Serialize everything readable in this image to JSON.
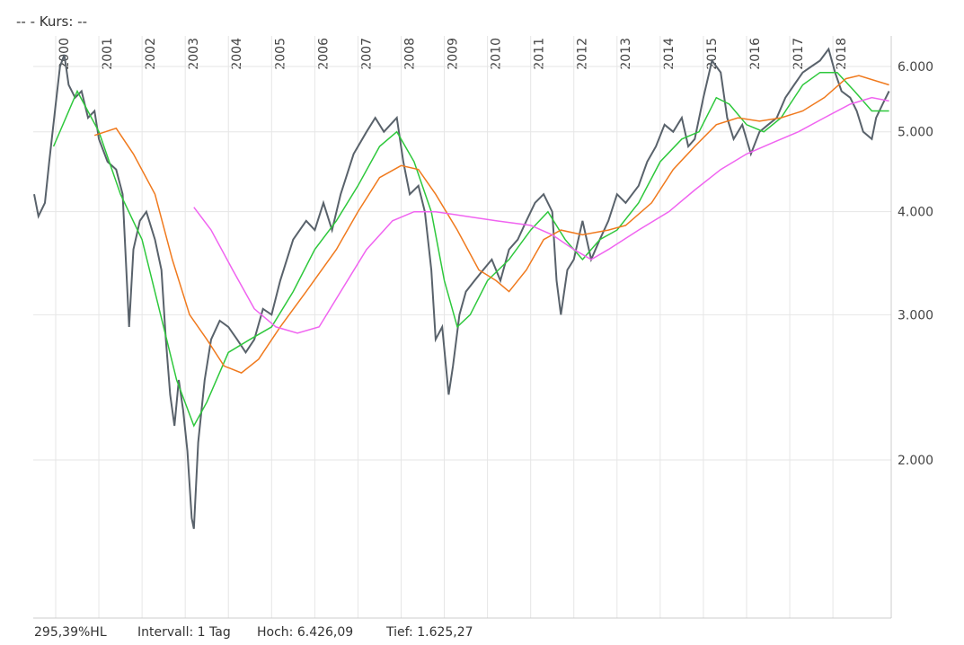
{
  "header": "--  - Kurs: --",
  "footer": [
    "295,39%HL",
    "Intervall: 1 Tag",
    "Hoch:  6.426,09",
    "Tief:  1.625,27"
  ],
  "chart_data": {
    "type": "line",
    "log_y": true,
    "grid": true,
    "xlim": [
      1999.48,
      2019.35
    ],
    "xticks": [
      2000,
      2001,
      2002,
      2003,
      2004,
      2005,
      2006,
      2007,
      2008,
      2009,
      2010,
      2011,
      2012,
      2013,
      2014,
      2015,
      2016,
      2017,
      2018
    ],
    "ylim": [
      1286,
      6535
    ],
    "yticks": [
      {
        "value": 2000,
        "label": "2.000"
      },
      {
        "value": 3000,
        "label": "3.000"
      },
      {
        "value": 4000,
        "label": "4.000"
      },
      {
        "value": 5000,
        "label": "5.000"
      },
      {
        "value": 6000,
        "label": "6.000"
      }
    ],
    "series": [
      {
        "color": "#59626b",
        "x": [
          1999.5,
          1999.6,
          1999.75,
          1999.85,
          2000.0,
          2000.1,
          2000.2,
          2000.3,
          2000.45,
          2000.6,
          2000.75,
          2000.9,
          2001.0,
          2001.2,
          2001.4,
          2001.55,
          2001.7,
          2001.8,
          2001.95,
          2002.1,
          2002.3,
          2002.45,
          2002.55,
          2002.65,
          2002.75,
          2002.85,
          2002.95,
          2003.05,
          2003.15,
          2003.2,
          2003.3,
          2003.45,
          2003.6,
          2003.8,
          2004.0,
          2004.2,
          2004.4,
          2004.6,
          2004.8,
          2005.0,
          2005.2,
          2005.5,
          2005.8,
          2006.0,
          2006.2,
          2006.4,
          2006.6,
          2006.9,
          2007.2,
          2007.4,
          2007.6,
          2007.9,
          2008.05,
          2008.2,
          2008.4,
          2008.55,
          2008.7,
          2008.8,
          2008.95,
          2009.1,
          2009.2,
          2009.35,
          2009.5,
          2009.7,
          2009.9,
          2010.1,
          2010.3,
          2010.5,
          2010.7,
          2010.9,
          2011.1,
          2011.3,
          2011.5,
          2011.6,
          2011.7,
          2011.85,
          2012.0,
          2012.2,
          2012.4,
          2012.6,
          2012.8,
          2013.0,
          2013.2,
          2013.5,
          2013.7,
          2013.9,
          2014.1,
          2014.3,
          2014.5,
          2014.65,
          2014.8,
          2015.0,
          2015.2,
          2015.4,
          2015.55,
          2015.7,
          2015.9,
          2016.1,
          2016.3,
          2016.5,
          2016.7,
          2016.9,
          2017.1,
          2017.3,
          2017.5,
          2017.7,
          2017.9,
          2018.05,
          2018.2,
          2018.4,
          2018.55,
          2018.7,
          2018.9,
          2019.0,
          2019.15,
          2019.3
        ],
        "values": [
          4200,
          3950,
          4100,
          4600,
          5400,
          6000,
          6200,
          5700,
          5500,
          5600,
          5200,
          5300,
          4900,
          4600,
          4500,
          4200,
          2900,
          3600,
          3900,
          4000,
          3700,
          3400,
          2800,
          2400,
          2200,
          2500,
          2300,
          2050,
          1700,
          1650,
          2100,
          2500,
          2800,
          2950,
          2900,
          2800,
          2700,
          2800,
          3050,
          3000,
          3300,
          3700,
          3900,
          3800,
          4100,
          3800,
          4200,
          4700,
          5000,
          5200,
          5000,
          5200,
          4600,
          4200,
          4300,
          4000,
          3400,
          2800,
          2900,
          2400,
          2600,
          3000,
          3200,
          3300,
          3400,
          3500,
          3300,
          3600,
          3700,
          3900,
          4100,
          4200,
          4000,
          3300,
          3000,
          3400,
          3500,
          3900,
          3500,
          3700,
          3900,
          4200,
          4100,
          4300,
          4600,
          4800,
          5100,
          5000,
          5200,
          4800,
          4900,
          5500,
          6100,
          5900,
          5200,
          4900,
          5100,
          4700,
          5000,
          5100,
          5200,
          5500,
          5700,
          5900,
          6000,
          6100,
          6300,
          5900,
          5600,
          5500,
          5300,
          5000,
          4900,
          5200,
          5400,
          5600
        ]
      },
      {
        "color": "#2ec83c",
        "x": [
          1999.95,
          2000.5,
          2001.0,
          2001.5,
          2002.0,
          2002.5,
          2002.8,
          2003.2,
          2003.5,
          2004.0,
          2004.5,
          2005.0,
          2005.5,
          2006.0,
          2006.5,
          2007.0,
          2007.5,
          2007.9,
          2008.3,
          2008.7,
          2009.0,
          2009.3,
          2009.6,
          2010.0,
          2010.5,
          2011.0,
          2011.4,
          2011.8,
          2012.2,
          2012.6,
          2013.0,
          2013.5,
          2014.0,
          2014.5,
          2014.9,
          2015.3,
          2015.6,
          2016.0,
          2016.4,
          2016.8,
          2017.3,
          2017.7,
          2018.1,
          2018.5,
          2018.9,
          2019.3
        ],
        "values": [
          4800,
          5600,
          5000,
          4200,
          3700,
          2900,
          2500,
          2200,
          2350,
          2700,
          2800,
          2900,
          3200,
          3600,
          3900,
          4300,
          4800,
          5000,
          4600,
          4000,
          3300,
          2900,
          3000,
          3300,
          3500,
          3800,
          4000,
          3700,
          3500,
          3700,
          3800,
          4100,
          4600,
          4900,
          5000,
          5500,
          5400,
          5100,
          5000,
          5200,
          5700,
          5900,
          5900,
          5600,
          5300,
          5300
        ]
      },
      {
        "color": "#f07a1e",
        "x": [
          2000.9,
          2001.4,
          2001.8,
          2002.3,
          2002.7,
          2003.1,
          2003.5,
          2003.9,
          2004.3,
          2004.7,
          2005.2,
          2005.8,
          2006.5,
          2007.0,
          2007.5,
          2008.0,
          2008.4,
          2008.8,
          2009.3,
          2009.8,
          2010.2,
          2010.5,
          2010.9,
          2011.3,
          2011.7,
          2012.2,
          2012.8,
          2013.2,
          2013.8,
          2014.3,
          2014.8,
          2015.3,
          2015.8,
          2016.3,
          2016.8,
          2017.3,
          2017.8,
          2018.3,
          2018.6,
          2019.3
        ],
        "values": [
          4950,
          5050,
          4700,
          4200,
          3500,
          3000,
          2800,
          2600,
          2550,
          2650,
          2900,
          3200,
          3600,
          4000,
          4400,
          4550,
          4500,
          4200,
          3800,
          3400,
          3300,
          3200,
          3400,
          3700,
          3800,
          3750,
          3800,
          3850,
          4100,
          4500,
          4800,
          5100,
          5200,
          5150,
          5200,
          5300,
          5500,
          5800,
          5850,
          5700
        ]
      },
      {
        "color": "#f064f0",
        "x": [
          2003.2,
          2003.6,
          2004.1,
          2004.6,
          2005.1,
          2005.6,
          2006.1,
          2006.6,
          2007.2,
          2007.8,
          2008.3,
          2008.8,
          2009.5,
          2010.2,
          2011.0,
          2011.5,
          2012.0,
          2012.4,
          2012.8,
          2013.5,
          2014.2,
          2014.8,
          2015.4,
          2016.0,
          2016.6,
          2017.2,
          2017.8,
          2018.4,
          2018.9,
          2019.3
        ],
        "values": [
          4050,
          3800,
          3400,
          3050,
          2900,
          2850,
          2900,
          3200,
          3600,
          3900,
          4000,
          4000,
          3950,
          3900,
          3850,
          3750,
          3600,
          3500,
          3600,
          3800,
          4000,
          4250,
          4500,
          4700,
          4850,
          5000,
          5200,
          5400,
          5500,
          5450
        ]
      }
    ]
  }
}
